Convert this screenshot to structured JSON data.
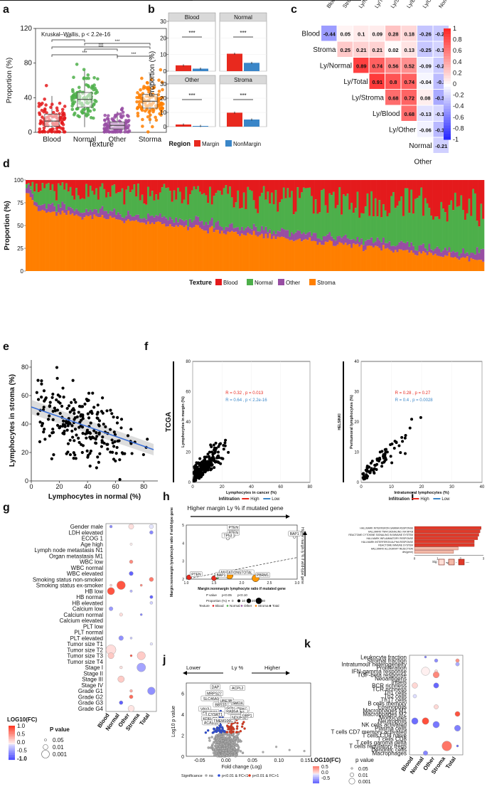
{
  "panel_labels": [
    "a",
    "b",
    "c",
    "d",
    "e",
    "f",
    "g",
    "h",
    "i",
    "j",
    "k"
  ],
  "chart_data": [
    {
      "id": "a",
      "type": "box",
      "title": "Kruskal–Wallis, p < 2.2e-16",
      "xlabel": "Texture",
      "ylabel": "Proportion (%)",
      "ylim": [
        0,
        120
      ],
      "yticks": [
        "0",
        "40",
        "80",
        "120"
      ],
      "categories": [
        "Blood",
        "Normal",
        "Other",
        "Storma"
      ],
      "colors": [
        "#e41a1c",
        "#4daf4a",
        "#984ea3",
        "#ff7f00"
      ],
      "boxes": [
        {
          "q1": 7,
          "median": 13,
          "q3": 21,
          "lo": 0,
          "hi": 42
        },
        {
          "q1": 29,
          "median": 38,
          "q3": 46,
          "lo": 6,
          "hi": 72
        },
        {
          "q1": 4,
          "median": 8,
          "q3": 12,
          "lo": 0,
          "hi": 24
        },
        {
          "q1": 28,
          "median": 36,
          "q3": 44,
          "lo": 10,
          "hi": 68
        }
      ],
      "sig": "***"
    },
    {
      "id": "b",
      "type": "bar",
      "ylabel": "Proportion (%)",
      "facets": [
        {
          "name": "Blood",
          "values": [
            3.5,
            1.5
          ],
          "ylim": [
            0,
            30
          ]
        },
        {
          "name": "Normal",
          "values": [
            10.5,
            5.0
          ],
          "ylim": [
            0,
            30
          ]
        },
        {
          "name": "Other",
          "values": [
            1.5,
            0.5
          ],
          "ylim": [
            0,
            30
          ]
        },
        {
          "name": "Stroma",
          "values": [
            9.8,
            5.0
          ],
          "ylim": [
            0,
            30
          ]
        }
      ],
      "yticks": [
        "0",
        "10",
        "20",
        "30"
      ],
      "sig": "***",
      "legend": {
        "title": "Region",
        "items": [
          "Margin",
          "NonMargin"
        ],
        "colors": [
          "#e8291e",
          "#3a86c8"
        ]
      }
    },
    {
      "id": "c",
      "type": "heatmap",
      "labels": [
        "Blood",
        "Stroma",
        "Ly/Normal",
        "Ly/Total",
        "Ly/Stroma",
        "Ly/Blood",
        "Ly/Other",
        "Normal",
        "Other"
      ],
      "cells": [
        [
          "-0.44",
          "0.05",
          "0.1",
          "0.09",
          "0.28",
          "0.18",
          "-0.26",
          "-0.24"
        ],
        [
          "0.25",
          "0.21",
          "0.21",
          "0.02",
          "0.13",
          "-0.25",
          "-0.19"
        ],
        [
          "0.89",
          "0.74",
          "0.56",
          "0.52",
          "-0.09",
          "-0.24"
        ],
        [
          "0.91",
          "0.8",
          "0.74",
          "-0.04",
          "-0.3"
        ],
        [
          "0.68",
          "0.72",
          "0.08",
          "-0.38"
        ],
        [
          "0.68",
          "-0.13",
          "-0.18"
        ],
        [
          "-0.06",
          "-0.31"
        ],
        [
          "-0.21"
        ]
      ],
      "colorbar": [
        "1",
        "0.8",
        "0.6",
        "0.4",
        "0.2",
        "0",
        "-0.2",
        "-0.4",
        "-0.6",
        "-0.8",
        "-1"
      ]
    },
    {
      "id": "d",
      "type": "bar",
      "stacked": true,
      "ylabel": "Proportion (%)",
      "yticks": [
        "0",
        "25",
        "50",
        "75",
        "100"
      ],
      "legend": {
        "title": "Texture",
        "items": [
          "Blood",
          "Normal",
          "Other",
          "Stroma"
        ],
        "colors": [
          "#e41a1c",
          "#4daf4a",
          "#984ea3",
          "#ff7f00"
        ]
      },
      "n_samples": 230
    },
    {
      "id": "e",
      "type": "scatter",
      "xlabel": "Lymphocytes in normal (%)",
      "ylabel": "Lymphocytes in stroma (%)",
      "xticks": [
        "0",
        "20",
        "40",
        "60",
        "80"
      ],
      "yticks": [
        "0",
        "20",
        "40",
        "60",
        "80"
      ],
      "xlim": [
        0,
        90
      ],
      "ylim": [
        0,
        85
      ],
      "fit": {
        "x": [
          0,
          87
        ],
        "y": [
          52,
          22
        ]
      }
    },
    {
      "id": "f1",
      "type": "scatter",
      "title": "TCGA",
      "xlabel": "Lymphocytes in cancer (%)",
      "ylabel": "Lymphocytes in margin (%)",
      "xticks": [
        "0",
        "20",
        "40",
        "60",
        "80"
      ],
      "yticks": [
        "0",
        "20",
        "40",
        "60",
        "80"
      ],
      "xlim": [
        0,
        80
      ],
      "ylim": [
        0,
        80
      ],
      "stats": [
        "R = 0.32 , p = 0.013",
        "R = 0.64 , p < 2.2e-16"
      ],
      "legend": {
        "title": "Infiltration",
        "items": [
          "High",
          "Low"
        ],
        "colors": [
          "#e8291e",
          "#3a86c8"
        ]
      }
    },
    {
      "id": "f2",
      "type": "scatter",
      "title": "HELSINKI",
      "xlabel": "Intratumoral lymphocytes (%)",
      "ylabel": "Peritumoral lymphocytes (%)",
      "xticks": [
        "0",
        "10",
        "20",
        "30",
        "40"
      ],
      "yticks": [
        "0",
        "10",
        "20",
        "30",
        "40"
      ],
      "xlim": [
        0,
        40
      ],
      "ylim": [
        0,
        40
      ],
      "stats": [
        "R = 0.28 , p = 0.27",
        "R = 0.4 , p = 0.0028"
      ],
      "legend": {
        "title": "Infiltration",
        "items": [
          "High",
          "Low"
        ],
        "colors": [
          "#e8291e",
          "#3a86c8"
        ]
      }
    },
    {
      "id": "g",
      "type": "dot",
      "rows": [
        "Gender male",
        "LDH elevated",
        "ECOG 1",
        "Age high",
        "Lymph node metastasis N1",
        "Organ metastasis M1",
        "WBC low",
        "WBC normal",
        "WBC elevated",
        "Smoking status non-smoker",
        "Smoking status ex-smoker",
        "HB low",
        "HB normal",
        "HB elevated",
        "Calcium low",
        "Calcium normal",
        "Calcium elevated",
        "PLT low",
        "PLT normal",
        "PLT elevated",
        "Tumor size T1",
        "Tumor size T2",
        "Tumor size T3",
        "Tumor size T4",
        "Stage I",
        "Stage II",
        "Stage III",
        "Stage IV",
        "Grade G1",
        "Grade G2",
        "Grade G3",
        "Grade G4"
      ],
      "cols": [
        "Blood",
        "Normal",
        "Other",
        "Stroma",
        "Total"
      ],
      "legend_fc": {
        "title": "LOG10(FC)",
        "ticks": [
          "1.0",
          "0.5",
          "0.0",
          "-0.5",
          "-1.0"
        ]
      },
      "legend_p": {
        "title": "P value",
        "items": [
          "0.05",
          "0.01",
          "0.001"
        ]
      }
    },
    {
      "id": "h",
      "type": "scatter",
      "top_arrow": "Higher margin Ly % if mutated gene",
      "right_arrow": "Higher margin ly % if wild-type gene",
      "xlabel": "Margin:nonmargin lymphocyte ratio  if mutated gene",
      "ylabel": "Margin:nonmargin lymphocyte ratio  if wild-type gene",
      "xticks": [
        "1.0",
        "1.5",
        "2.0",
        "2.5",
        "3.0"
      ],
      "yticks": [
        "2",
        "3",
        "4",
        "5"
      ],
      "xlim": [
        1,
        3
      ],
      "ylim": [
        2,
        5
      ],
      "points": [
        {
          "label": "PTEN",
          "x": 1.85,
          "y": 4.7
        },
        {
          "label": "PTEN",
          "x": 1.85,
          "y": 4.4
        },
        {
          "label": "TP53",
          "x": 1.75,
          "y": 4.25
        },
        {
          "label": "BAP1",
          "x": 2.95,
          "y": 4.35
        },
        {
          "label": "VHL",
          "x": 1.55,
          "y": 2.15
        },
        {
          "label": "MUTATIONSTOTAL",
          "x": 1.78,
          "y": 2.2
        },
        {
          "label": "PTEN",
          "x": 1.05,
          "y": 2.1
        },
        {
          "label": "BAP1",
          "x": 1.5,
          "y": 2.05
        },
        {
          "label": "PBRM1",
          "x": 2.25,
          "y": 2.05
        }
      ],
      "legend": {
        "pvalue": "P value",
        "pvalue_items": [
          "p<0.05",
          "p<0.10"
        ],
        "prop": "Proportion (%)",
        "prop_items": [
          "0",
          "10",
          "20",
          "30"
        ],
        "texture": "Texture",
        "texture_items": [
          "Blood",
          "Normal",
          "Other",
          "Stroma",
          "Total"
        ]
      }
    },
    {
      "id": "i",
      "type": "bar",
      "orientation": "horizontal",
      "categories": [
        "HALLMARK INTERFERON GAMMA RESPONSE",
        "HALLMARK TNFA SIGNALING VIA NFKB",
        "REACTOME CYTOKINE SIGNALING IN IMMUNE SYSTEM",
        "HALLMARK INFLAMMATORY RESPONSE",
        "HALLMARK INTERFERON ALPHA RESPONSE",
        "REACTOME IMMUNE SYSTEM",
        "HALLMARK ALLOGRAFT REJECTION",
        "dev(gene)"
      ],
      "values": [
        2.9,
        2.85,
        2.8,
        2.75,
        2.6,
        2.6,
        1.9,
        1.7
      ],
      "xticks": [
        "0",
        "1",
        "2",
        "3"
      ],
      "xlabel": "NES",
      "legend": {
        "title": "Sig",
        "items": [
          "-",
          "-",
          "---"
        ]
      }
    },
    {
      "id": "j",
      "type": "scatter",
      "top_arrows": [
        "Lower",
        "Ly %",
        "Higher"
      ],
      "xlabel": "Fold change (Log)",
      "ylabel": "Log10 p value",
      "xticks": [
        "-0.05",
        "0.00",
        "0.05",
        "0.10",
        "0.15"
      ],
      "yticks": [
        "0",
        "2",
        "4",
        "6"
      ],
      "xlim": [
        -0.075,
        0.16
      ],
      "ylim": [
        0,
        7
      ],
      "genes": [
        "DAP",
        "MRPS27",
        "SLC46A1",
        "BBS10",
        "VAV3",
        "PDXDC1",
        "CYSRT1",
        "KDELR3",
        "ACAD10",
        "TMEM106C",
        "ACPL2",
        "UBE3B",
        "SMOX",
        "MTA2",
        "GOLPH3",
        "ITPKC",
        "EMILIN1",
        "NDUFS2",
        "GBP1",
        "RAB5A"
      ],
      "legend": {
        "title": "Significance",
        "items": [
          "ns",
          "p<0.01 & FC<1",
          "p<0.01 & FC>1"
        ],
        "colors": [
          "#aaaaaa",
          "#2b4bd6",
          "#d9381e"
        ]
      }
    },
    {
      "id": "k",
      "type": "dot",
      "rows": [
        "Leukocyte fraction",
        "Stromal fraction",
        "Intratumour heterogeneity",
        "Proliferation",
        "IFN-gamma response",
        "TGF-beta response",
        "Neoantigens",
        "Indels",
        "BCR richness",
        "TCR richness",
        "Th1 cells",
        "Th2 cells",
        "Th17 cells",
        "B cells memory",
        "Eosinophils",
        "Macrophages M1",
        "Macrophages M2",
        "Monocytes",
        "Neutrophils",
        "NK cells activated",
        "Plasma cells",
        "T cells CD7 memory activated",
        "T cells CD4 naive",
        "T cells CD8",
        "T cells gamma delta",
        "T cells regulatory tregs",
        "Dendritic cells",
        "Macrophages"
      ],
      "cols": [
        "Blood",
        "Normal",
        "Other",
        "Stroma",
        "Total"
      ],
      "legend_fc": {
        "title": "LOG10(FC)",
        "ticks": [
          "0.5",
          "0.0",
          "-0.5"
        ]
      },
      "legend_p": {
        "title": "p value",
        "items": [
          "0.05",
          "0.01",
          "0.001"
        ]
      }
    }
  ]
}
